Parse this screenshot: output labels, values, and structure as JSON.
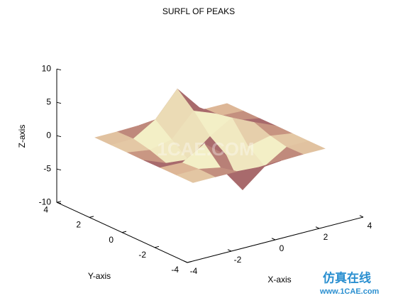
{
  "chart_data": {
    "type": "surface",
    "title": "SURFL OF PEAKS",
    "x_label": "X-axis",
    "y_label": "Y-axis",
    "z_label": "Z-axis",
    "x": [
      -3,
      -2,
      -1,
      0,
      1,
      2,
      3
    ],
    "y": [
      -3,
      -2,
      -1,
      0,
      1,
      2,
      3
    ],
    "z": [
      [
        0,
        0,
        -0.03,
        -0.24,
        -0.11,
        -0.01,
        0
      ],
      [
        0,
        0.05,
        -0.59,
        -4.76,
        -2.1,
        -0.06,
        0
      ],
      [
        -0.01,
        -0.13,
        1.86,
        -0.72,
        -0.27,
        0.5,
        0.01
      ],
      [
        -0.04,
        -1.33,
        -1.65,
        0.98,
        2.94,
        1.41,
        0.03
      ],
      [
        -0.01,
        -0.48,
        0.23,
        3.69,
        2.43,
        0.58,
        0.01
      ],
      [
        0,
        0.08,
        2.1,
        5.86,
        2.21,
        0.13,
        0
      ],
      [
        0,
        0.01,
        0.11,
        0.3,
        0.11,
        0.01,
        0
      ]
    ],
    "xlim": [
      -4,
      4
    ],
    "xticks": [
      -4,
      -2,
      0,
      2,
      4
    ],
    "ylim": [
      -4,
      4
    ],
    "yticks": [
      -4,
      -2,
      0,
      2,
      4
    ],
    "zlim": [
      -10,
      10
    ],
    "zticks": [
      -10,
      -5,
      0,
      5,
      10
    ],
    "colormap": [
      "#a86a6c",
      "#d9ad8e",
      "#f3efc6"
    ],
    "watermark": "1CAE.COM",
    "footer_brand": "仿真在线",
    "footer_url": "www.1CAE.com"
  }
}
